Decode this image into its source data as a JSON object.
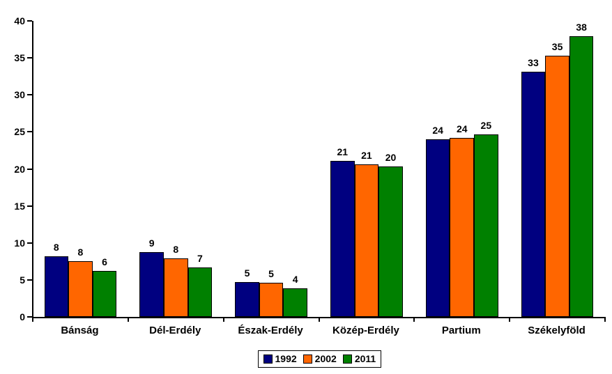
{
  "chart_data": {
    "type": "bar",
    "title": "",
    "xlabel": "",
    "ylabel": "",
    "categories": [
      "Bánság",
      "Dél-Erdély",
      "Észak-Erdély",
      "Közép-Erdély",
      "Partium",
      "Székelyföld"
    ],
    "series": [
      {
        "name": "1992",
        "color": "#000080",
        "values": [
          8.2,
          8.8,
          4.7,
          21.1,
          24.0,
          33.1
        ],
        "labels": [
          "8",
          "9",
          "5",
          "21",
          "24",
          "33"
        ]
      },
      {
        "name": "2002",
        "color": "#FF6600",
        "values": [
          7.5,
          7.9,
          4.6,
          20.6,
          24.2,
          35.3
        ],
        "labels": [
          "8",
          "8",
          "5",
          "21",
          "24",
          "35"
        ]
      },
      {
        "name": "2011",
        "color": "#008000",
        "values": [
          6.2,
          6.7,
          3.9,
          20.3,
          24.7,
          37.9
        ],
        "labels": [
          "6",
          "7",
          "4",
          "20",
          "25",
          "38"
        ]
      }
    ],
    "ylim": [
      0,
      40
    ],
    "yticks": [
      0,
      5,
      10,
      15,
      20,
      25,
      30,
      35,
      40
    ],
    "grid": false,
    "legend_position": "bottom",
    "bar_border_color": "#000000",
    "axis_color": "#000000",
    "background": "#FFFFFF"
  },
  "layout_note_values_are_data": {
    "legend_labels": [
      "1992",
      "2002",
      "2011"
    ]
  }
}
